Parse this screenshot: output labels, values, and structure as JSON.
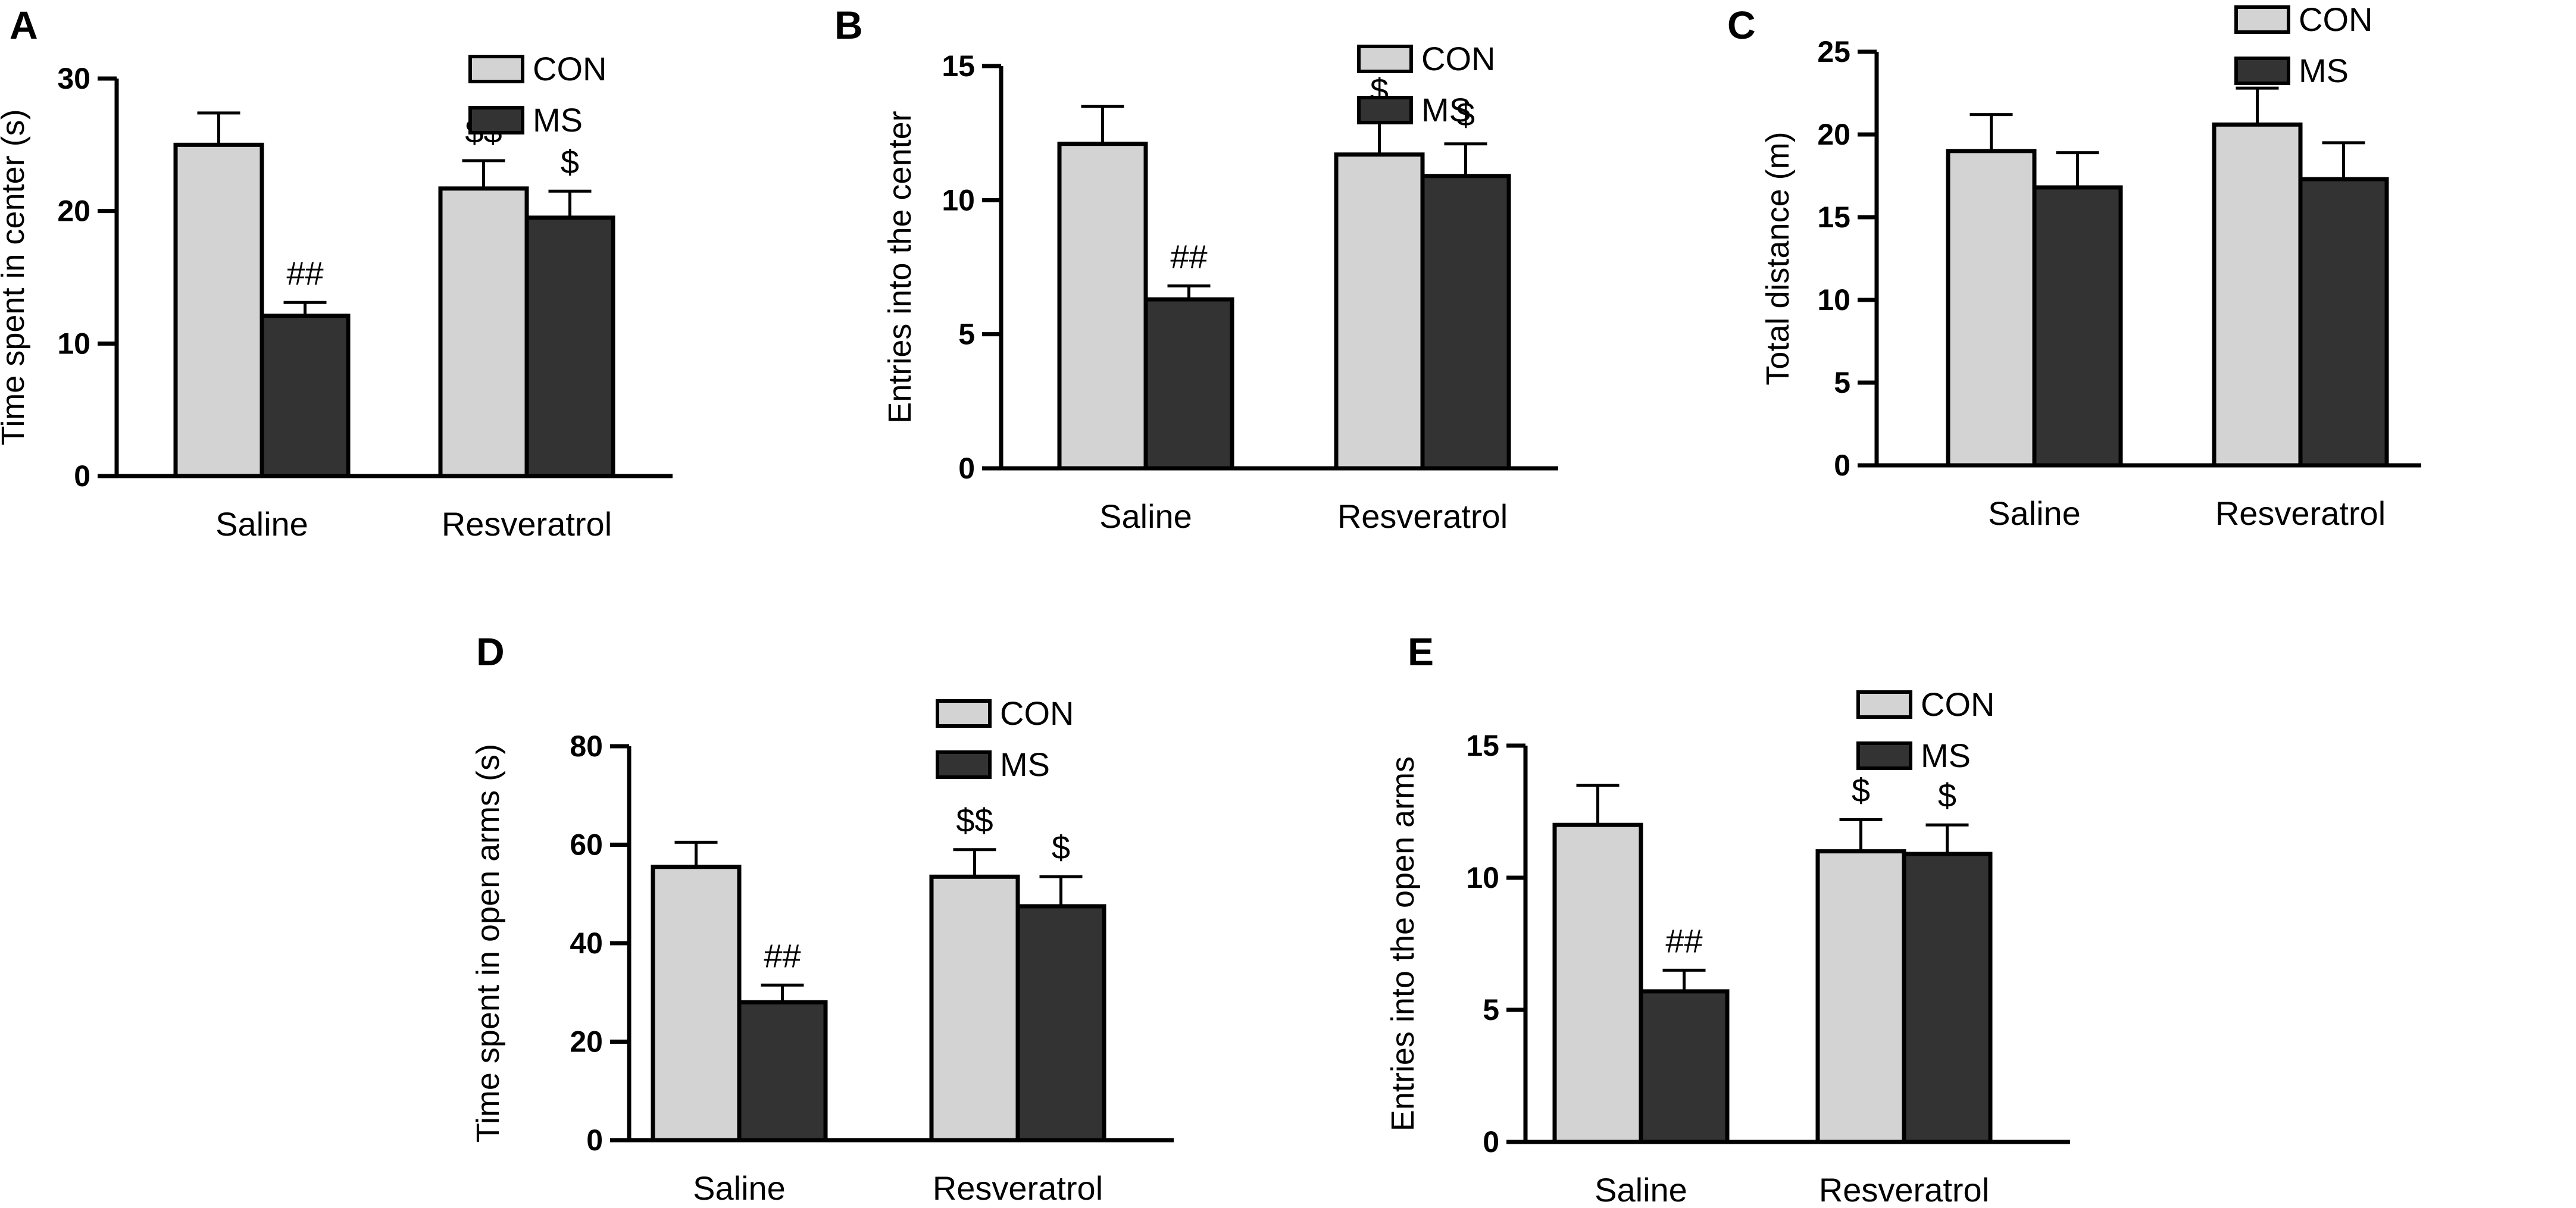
{
  "colors": {
    "con_fill": "#d3d3d3",
    "ms_fill": "#333333",
    "outline": "#000000"
  },
  "chart_data": [
    {
      "panel_label": "A",
      "type": "bar",
      "categories": [
        "Saline",
        "Resveratrol"
      ],
      "series": [
        {
          "name": "CON",
          "values": [
            25.0,
            21.7
          ],
          "errors": [
            2.4,
            2.1
          ],
          "annotations": [
            "",
            "$$"
          ]
        },
        {
          "name": "MS",
          "values": [
            12.1,
            19.5
          ],
          "errors": [
            1.0,
            2.0
          ],
          "annotations": [
            "##",
            "$"
          ]
        }
      ],
      "ylabel": "Time spent in center (s)",
      "ylim": [
        0,
        30
      ],
      "yticks": [
        0,
        10,
        20,
        30
      ],
      "legend": "top-right"
    },
    {
      "panel_label": "B",
      "type": "bar",
      "categories": [
        "Saline",
        "Resveratrol"
      ],
      "series": [
        {
          "name": "CON",
          "values": [
            12.1,
            11.7
          ],
          "errors": [
            1.4,
            1.3
          ],
          "annotations": [
            "",
            "$"
          ]
        },
        {
          "name": "MS",
          "values": [
            6.3,
            10.9
          ],
          "errors": [
            0.5,
            1.2
          ],
          "annotations": [
            "##",
            "$"
          ]
        }
      ],
      "ylabel": "Entries into the center",
      "ylim": [
        0,
        15
      ],
      "yticks": [
        0,
        5,
        10,
        15
      ],
      "legend": "top-right"
    },
    {
      "panel_label": "C",
      "type": "bar",
      "categories": [
        "Saline",
        "Resveratrol"
      ],
      "series": [
        {
          "name": "CON",
          "values": [
            19.0,
            20.6
          ],
          "errors": [
            2.2,
            2.2
          ],
          "annotations": [
            "",
            ""
          ]
        },
        {
          "name": "MS",
          "values": [
            16.8,
            17.3
          ],
          "errors": [
            2.1,
            2.2
          ],
          "annotations": [
            "",
            ""
          ]
        }
      ],
      "ylabel": "Total distance (m)",
      "ylim": [
        0,
        25
      ],
      "yticks": [
        0,
        5,
        10,
        15,
        20,
        25
      ],
      "legend": "top-right"
    },
    {
      "panel_label": "D",
      "type": "bar",
      "categories": [
        "Saline",
        "Resveratrol"
      ],
      "series": [
        {
          "name": "CON",
          "values": [
            55.5,
            53.5
          ],
          "errors": [
            5.0,
            5.5
          ],
          "annotations": [
            "",
            "$$"
          ]
        },
        {
          "name": "MS",
          "values": [
            28.0,
            47.5
          ],
          "errors": [
            3.5,
            6.0
          ],
          "annotations": [
            "##",
            "$"
          ]
        }
      ],
      "ylabel": "Time spent in open arms (s)",
      "ylim": [
        0,
        80
      ],
      "yticks": [
        0,
        20,
        40,
        60,
        80
      ],
      "legend": "top-right"
    },
    {
      "panel_label": "E",
      "type": "bar",
      "categories": [
        "Saline",
        "Resveratrol"
      ],
      "series": [
        {
          "name": "CON",
          "values": [
            12.0,
            11.0
          ],
          "errors": [
            1.5,
            1.2
          ],
          "annotations": [
            "",
            "$"
          ]
        },
        {
          "name": "MS",
          "values": [
            5.7,
            10.9
          ],
          "errors": [
            0.8,
            1.1
          ],
          "annotations": [
            "##",
            "$"
          ]
        }
      ],
      "ylabel": "Entries into the open arms",
      "ylim": [
        0,
        15
      ],
      "yticks": [
        0,
        5,
        10,
        15
      ],
      "legend": "top-right"
    }
  ]
}
